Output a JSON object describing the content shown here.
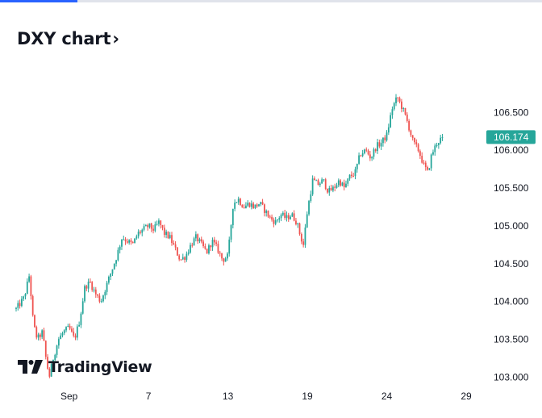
{
  "header": {
    "title": "DXY chart",
    "chevron": "›"
  },
  "branding": {
    "logo_text": "TradingView",
    "logo_icon": "tradingview-logo-icon"
  },
  "colors": {
    "up": "#26a69a",
    "down": "#ef5350",
    "badge": "#26a69a",
    "accent": "#2962ff"
  },
  "chart_data": {
    "type": "candlestick",
    "title": "DXY chart",
    "ylim": [
      102.95,
      106.92
    ],
    "y_ticks": [
      103.0,
      103.5,
      104.0,
      104.5,
      105.0,
      105.5,
      106.0,
      106.5
    ],
    "y_tick_labels": [
      "103.000",
      "103.500",
      "104.000",
      "104.500",
      "105.000",
      "105.500",
      "106.000",
      "106.500"
    ],
    "x_tick_labels": [
      "Sep",
      "7",
      "13",
      "19",
      "24",
      "29"
    ],
    "x_tick_days": [
      4,
      10,
      16,
      22,
      28,
      34
    ],
    "current_price": 106.174,
    "current_price_label": "106.174",
    "grid": false,
    "series": [
      {
        "keypoints": [
          [
            0.0,
            103.9
          ],
          [
            0.6,
            104.05
          ],
          [
            1.0,
            104.35
          ],
          [
            1.3,
            103.7
          ],
          [
            1.6,
            103.5
          ],
          [
            2.0,
            103.6
          ],
          [
            2.2,
            103.3
          ],
          [
            2.5,
            103.0
          ],
          [
            2.8,
            103.25
          ],
          [
            3.2,
            103.5
          ],
          [
            3.6,
            103.6
          ],
          [
            4.0,
            103.65
          ],
          [
            4.4,
            103.5
          ],
          [
            4.8,
            103.75
          ],
          [
            5.2,
            104.2
          ],
          [
            5.6,
            104.25
          ],
          [
            6.0,
            104.1
          ],
          [
            6.4,
            104.0
          ],
          [
            6.8,
            104.2
          ],
          [
            7.2,
            104.4
          ],
          [
            7.6,
            104.6
          ],
          [
            8.0,
            104.85
          ],
          [
            8.4,
            104.8
          ],
          [
            8.8,
            104.75
          ],
          [
            9.2,
            104.9
          ],
          [
            9.6,
            104.95
          ],
          [
            10.0,
            105.0
          ],
          [
            10.4,
            104.95
          ],
          [
            10.8,
            105.05
          ],
          [
            11.2,
            104.9
          ],
          [
            11.6,
            104.85
          ],
          [
            12.0,
            104.7
          ],
          [
            12.4,
            104.55
          ],
          [
            12.8,
            104.6
          ],
          [
            13.2,
            104.75
          ],
          [
            13.6,
            104.85
          ],
          [
            14.0,
            104.75
          ],
          [
            14.4,
            104.65
          ],
          [
            14.8,
            104.8
          ],
          [
            15.2,
            104.7
          ],
          [
            15.6,
            104.55
          ],
          [
            16.0,
            104.6
          ],
          [
            16.4,
            105.3
          ],
          [
            16.8,
            105.35
          ],
          [
            17.2,
            105.25
          ],
          [
            17.6,
            105.3
          ],
          [
            18.0,
            105.25
          ],
          [
            18.4,
            105.3
          ],
          [
            18.8,
            105.2
          ],
          [
            19.2,
            105.1
          ],
          [
            19.6,
            105.05
          ],
          [
            20.0,
            105.15
          ],
          [
            20.4,
            105.1
          ],
          [
            20.8,
            105.15
          ],
          [
            21.2,
            105.05
          ],
          [
            21.5,
            104.85
          ],
          [
            21.7,
            104.75
          ],
          [
            22.0,
            105.2
          ],
          [
            22.4,
            105.6
          ],
          [
            22.8,
            105.55
          ],
          [
            23.2,
            105.6
          ],
          [
            23.6,
            105.45
          ],
          [
            24.0,
            105.5
          ],
          [
            24.4,
            105.6
          ],
          [
            24.8,
            105.5
          ],
          [
            25.2,
            105.65
          ],
          [
            25.6,
            105.7
          ],
          [
            26.0,
            105.95
          ],
          [
            26.4,
            106.0
          ],
          [
            26.8,
            105.9
          ],
          [
            27.2,
            106.05
          ],
          [
            27.6,
            106.1
          ],
          [
            28.0,
            106.2
          ],
          [
            28.4,
            106.55
          ],
          [
            28.8,
            106.7
          ],
          [
            29.2,
            106.55
          ],
          [
            29.6,
            106.35
          ],
          [
            30.0,
            106.1
          ],
          [
            30.4,
            106.0
          ],
          [
            30.8,
            105.8
          ],
          [
            31.1,
            105.7
          ],
          [
            31.4,
            105.95
          ],
          [
            31.8,
            106.1
          ],
          [
            32.2,
            106.17
          ]
        ]
      }
    ]
  }
}
